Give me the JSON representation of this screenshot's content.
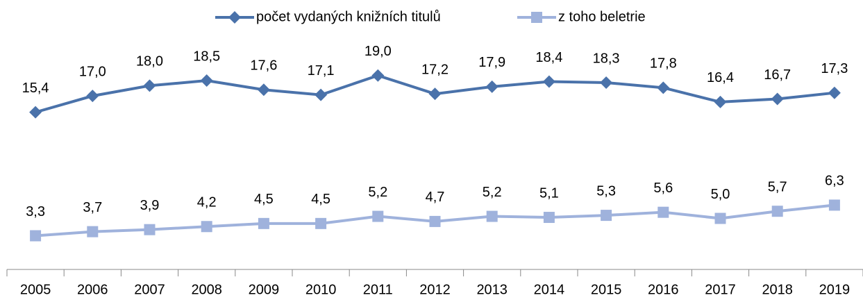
{
  "chart_data": {
    "type": "line",
    "categories": [
      "2005",
      "2006",
      "2007",
      "2008",
      "2009",
      "2010",
      "2011",
      "2012",
      "2013",
      "2014",
      "2015",
      "2016",
      "2017",
      "2018",
      "2019"
    ],
    "series": [
      {
        "name": "počet vydaných knižních titulů",
        "color": "#4a72aa",
        "marker": "diamond",
        "values": [
          15.4,
          17.0,
          18.0,
          18.5,
          17.6,
          17.1,
          19.0,
          17.2,
          17.9,
          18.4,
          18.3,
          17.8,
          16.4,
          16.7,
          17.3
        ],
        "value_labels": [
          "15,4",
          "17,0",
          "18,0",
          "18,5",
          "17,6",
          "17,1",
          "19,0",
          "17,2",
          "17,9",
          "18,4",
          "18,3",
          "17,8",
          "16,4",
          "16,7",
          "17,3"
        ]
      },
      {
        "name": "z toho beletrie",
        "color": "#9fb2dc",
        "marker": "square",
        "values": [
          3.3,
          3.7,
          3.9,
          4.2,
          4.5,
          4.5,
          5.2,
          4.7,
          5.2,
          5.1,
          5.3,
          5.6,
          5.0,
          5.7,
          6.3
        ],
        "value_labels": [
          "3,3",
          "3,7",
          "3,9",
          "4,2",
          "4,5",
          "4,5",
          "5,2",
          "4,7",
          "5,2",
          "5,1",
          "5,3",
          "5,6",
          "5,0",
          "5,7",
          "6,3"
        ]
      }
    ],
    "ylim": [
      0,
      20
    ],
    "legend": "top"
  }
}
